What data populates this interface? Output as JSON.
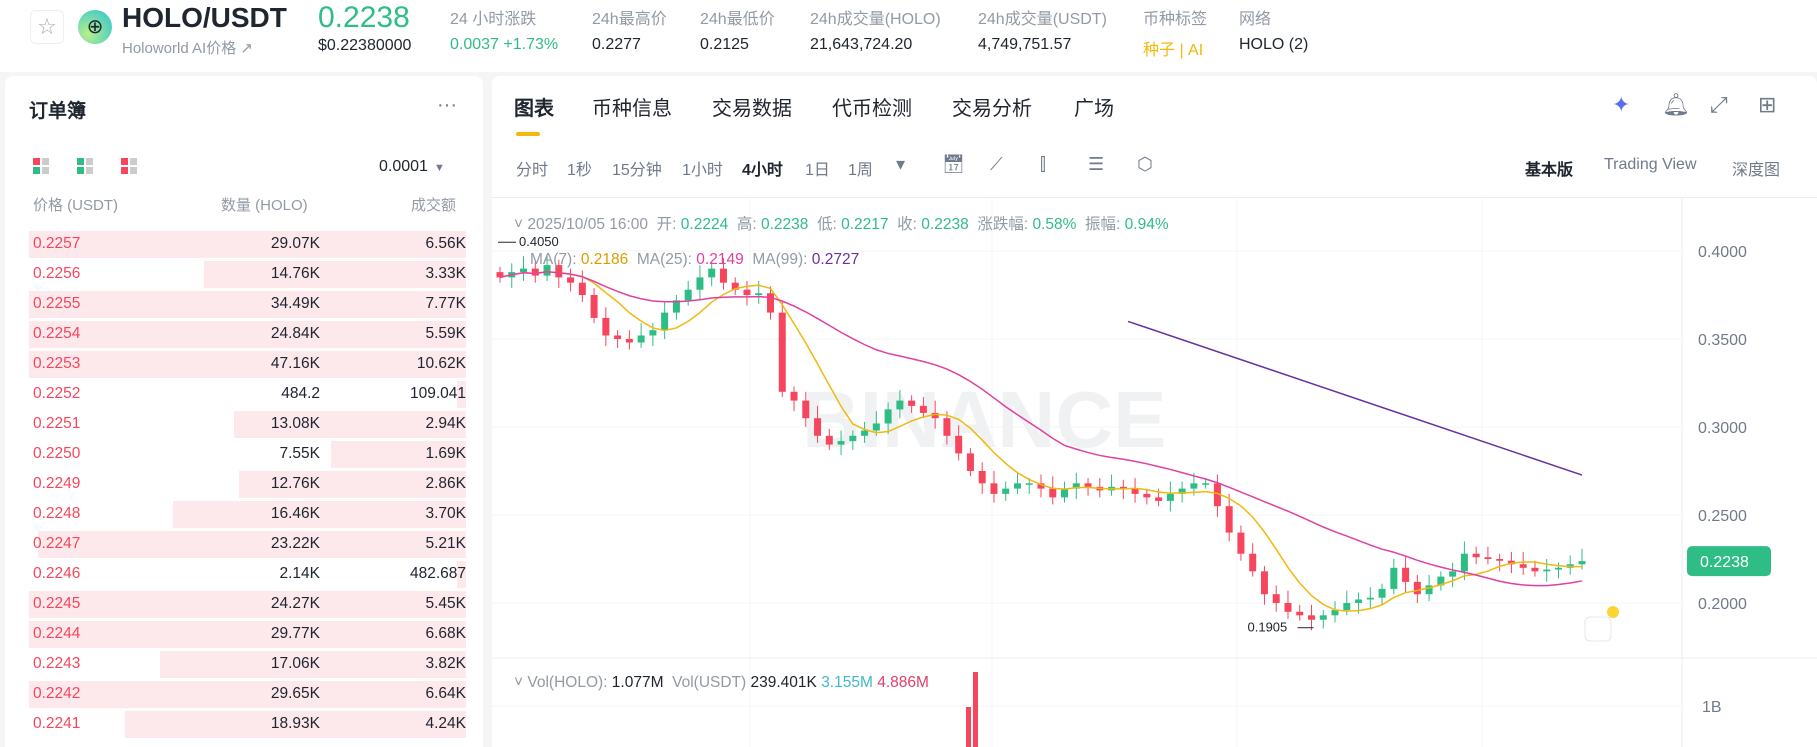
{
  "header": {
    "pair": "HOLO/USDT",
    "subtitle": "Holoworld AI价格 ↗",
    "last_price": "0.2238",
    "usd_price": "$0.22380000",
    "stats": [
      {
        "label": "24 小时涨跌",
        "value": "0.0037 +1.73%",
        "color": "#2ebd85"
      },
      {
        "label": "24h最高价",
        "value": "0.2277"
      },
      {
        "label": "24h最低价",
        "value": "0.2125"
      },
      {
        "label": "24h成交量(HOLO)",
        "value": "21,643,724.20"
      },
      {
        "label": "24h成交量(USDT)",
        "value": "4,749,751.57"
      },
      {
        "label": "币种标签",
        "value": "种子 | AI",
        "color": "#f0b90b"
      },
      {
        "label": "网络",
        "value": "HOLO (2)"
      }
    ]
  },
  "orderbook": {
    "title": "订单簿",
    "more": "···",
    "tick": "0.0001",
    "headers": [
      "价格 (USDT)",
      "数量 (HOLO)",
      "成交额"
    ],
    "rows": [
      [
        "0.2257",
        "29.07K",
        "6.56K",
        1.0
      ],
      [
        "0.2256",
        "14.76K",
        "3.33K",
        0.6
      ],
      [
        "0.2255",
        "34.49K",
        "7.77K",
        1.0
      ],
      [
        "0.2254",
        "24.84K",
        "5.59K",
        1.0
      ],
      [
        "0.2253",
        "47.16K",
        "10.62K",
        1.0
      ],
      [
        "0.2252",
        "484.2",
        "109.041",
        0.02
      ],
      [
        "0.2251",
        "13.08K",
        "2.94K",
        0.53
      ],
      [
        "0.2250",
        "7.55K",
        "1.69K",
        0.31
      ],
      [
        "0.2249",
        "12.76K",
        "2.86K",
        0.52
      ],
      [
        "0.2248",
        "16.46K",
        "3.70K",
        0.67
      ],
      [
        "0.2247",
        "23.22K",
        "5.21K",
        0.98
      ],
      [
        "0.2246",
        "2.14K",
        "482.687",
        0.02
      ],
      [
        "0.2245",
        "24.27K",
        "5.45K",
        1.0
      ],
      [
        "0.2244",
        "29.77K",
        "6.68K",
        1.0
      ],
      [
        "0.2243",
        "17.06K",
        "3.82K",
        0.7
      ],
      [
        "0.2242",
        "29.65K",
        "6.64K",
        1.0
      ],
      [
        "0.2241",
        "18.93K",
        "4.24K",
        0.78
      ]
    ]
  },
  "chart_panel": {
    "tabs": [
      "图表",
      "币种信息",
      "交易数据",
      "代币检测",
      "交易分析",
      "广场"
    ],
    "intervals": [
      "分时",
      "1秒",
      "15分钟",
      "1小时",
      "4小时",
      "1日",
      "1周"
    ],
    "active_interval": "4小时",
    "views": [
      "基本版",
      "Trading View",
      "深度图"
    ],
    "ohlc": {
      "date": "2025/10/05 16:00",
      "open_l": "开:",
      "open": "0.2224",
      "high_l": "高:",
      "high": "0.2238",
      "low_l": "低:",
      "low": "0.2217",
      "close_l": "收:",
      "close": "0.2238",
      "chg_l": "涨跌幅:",
      "chg": "0.58%",
      "amp_l": "振幅:",
      "amp": "0.94%"
    },
    "ma": {
      "ma7_l": "MA(7):",
      "ma7": "0.2186",
      "ma25_l": "MA(25):",
      "ma25": "0.2149",
      "ma99_l": "MA(99):",
      "ma99": "0.2727"
    },
    "vol": {
      "holo_l": "Vol(HOLO):",
      "holo": "1.077M",
      "usdt_l": "Vol(USDT)",
      "usdt": "239.401K",
      "v1": "3.155M",
      "v2": "4.886M",
      "axis": "1B"
    },
    "watermark": "BINANCE"
  },
  "chart_data": {
    "type": "candlestick",
    "y_ticks": [
      "0.4000",
      "0.3500",
      "0.3000",
      "0.2500",
      "0.2000"
    ],
    "ylim": [
      0.1795,
      0.4125
    ],
    "high_label": "0.4050",
    "low_label": "0.1905",
    "current": "0.2238",
    "closes": [
      0.385,
      0.388,
      0.39,
      0.386,
      0.392,
      0.385,
      0.382,
      0.375,
      0.362,
      0.352,
      0.35,
      0.348,
      0.352,
      0.355,
      0.365,
      0.372,
      0.378,
      0.385,
      0.39,
      0.382,
      0.378,
      0.375,
      0.376,
      0.365,
      0.32,
      0.315,
      0.305,
      0.295,
      0.29,
      0.292,
      0.295,
      0.298,
      0.302,
      0.31,
      0.315,
      0.312,
      0.308,
      0.305,
      0.295,
      0.285,
      0.275,
      0.268,
      0.262,
      0.265,
      0.268,
      0.268,
      0.265,
      0.26,
      0.265,
      0.268,
      0.266,
      0.264,
      0.266,
      0.265,
      0.262,
      0.26,
      0.258,
      0.262,
      0.265,
      0.268,
      0.268,
      0.255,
      0.24,
      0.228,
      0.218,
      0.205,
      0.2,
      0.195,
      0.193,
      0.1905,
      0.193,
      0.196,
      0.2,
      0.202,
      0.203,
      0.208,
      0.22,
      0.212,
      0.205,
      0.21,
      0.215,
      0.218,
      0.228,
      0.226,
      0.225,
      0.224,
      0.222,
      0.22,
      0.218,
      0.219,
      0.22,
      0.222,
      0.2238
    ],
    "ma99_segment": [
      0.36,
      0.2727
    ],
    "colors": {
      "up": "#2ebd85",
      "down": "#f6465d",
      "ma7": "#f0b90b",
      "ma25": "#e040a0",
      "ma99": "#6a2fa0"
    }
  }
}
